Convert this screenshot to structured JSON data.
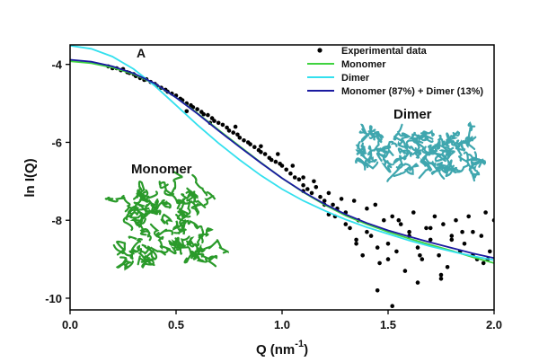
{
  "chart_data": {
    "type": "scatter",
    "panel_label": "A",
    "xlabel": "Q (nm",
    "xlabel_superscript": "-1",
    "xlabel_close": ")",
    "ylabel": "ln I(Q)",
    "xlim": [
      0.0,
      2.0
    ],
    "ylim": [
      -10.3,
      -3.5
    ],
    "x_ticks": [
      0.0,
      0.5,
      1.0,
      1.5,
      2.0
    ],
    "x_tick_labels": [
      "0.0",
      "0.5",
      "1.0",
      "1.5",
      "2.0"
    ],
    "y_ticks": [
      -4,
      -6,
      -8,
      -10
    ],
    "y_tick_labels": [
      "-4",
      "-6",
      "-8",
      "-10"
    ],
    "grid": false,
    "legend_position": "top-right",
    "annotations": {
      "monomer": "Monomer",
      "dimer": "Dimer"
    },
    "colors": {
      "experimental": "#000000",
      "monomer": "#3fd33f",
      "dimer": "#33e0ee",
      "mix": "#1a1aa0",
      "monomer_structure": "#2a9a2a",
      "dimer_structure": "#3fa6ae"
    },
    "series": [
      {
        "name": "Experimental data",
        "kind": "points",
        "x": [
          0.18,
          0.2,
          0.22,
          0.24,
          0.25,
          0.27,
          0.28,
          0.3,
          0.31,
          0.33,
          0.35,
          0.36,
          0.38,
          0.4,
          0.41,
          0.43,
          0.45,
          0.46,
          0.48,
          0.5,
          0.52,
          0.53,
          0.55,
          0.57,
          0.58,
          0.6,
          0.62,
          0.63,
          0.65,
          0.67,
          0.68,
          0.7,
          0.72,
          0.74,
          0.75,
          0.77,
          0.79,
          0.8,
          0.82,
          0.84,
          0.85,
          0.87,
          0.89,
          0.9,
          0.92,
          0.94,
          0.95,
          0.97,
          0.99,
          1.0,
          1.02,
          1.04,
          1.06,
          1.08,
          1.1,
          1.12,
          1.14,
          1.16,
          1.18,
          1.2,
          1.22,
          1.24,
          1.26,
          1.28,
          1.3,
          1.32,
          1.34,
          1.36,
          1.38,
          1.4,
          1.42,
          1.44,
          1.46,
          1.48,
          1.5,
          1.52,
          1.54,
          1.56,
          1.58,
          1.6,
          1.62,
          1.64,
          1.66,
          1.68,
          1.7,
          1.72,
          1.74,
          1.76,
          1.78,
          1.8,
          1.82,
          1.84,
          1.86,
          1.88,
          1.9,
          1.92,
          1.94,
          1.96,
          1.98,
          2.0,
          0.55,
          0.66,
          0.78,
          0.9,
          0.98,
          1.05,
          1.1,
          1.15,
          1.2,
          1.25,
          1.3,
          1.35,
          1.4,
          1.45,
          1.5,
          1.55,
          1.6,
          1.65,
          1.7,
          1.75,
          1.8,
          1.85,
          1.9,
          1.95,
          1.45,
          1.52,
          1.64,
          1.75,
          1.97,
          1.1,
          1.22,
          1.35
        ],
        "y": [
          -4.05,
          -4.1,
          -4.1,
          -4.15,
          -4.12,
          -4.2,
          -4.22,
          -4.25,
          -4.3,
          -4.35,
          -4.4,
          -4.38,
          -4.45,
          -4.5,
          -4.55,
          -4.6,
          -4.65,
          -4.7,
          -4.75,
          -4.8,
          -4.88,
          -4.92,
          -5.0,
          -5.05,
          -5.1,
          -5.15,
          -5.22,
          -5.28,
          -5.3,
          -5.38,
          -5.45,
          -5.5,
          -5.55,
          -5.62,
          -5.7,
          -5.75,
          -5.8,
          -5.88,
          -5.95,
          -6.0,
          -6.05,
          -6.12,
          -6.2,
          -6.25,
          -6.3,
          -6.4,
          -6.45,
          -6.5,
          -6.55,
          -6.6,
          -6.7,
          -6.8,
          -6.9,
          -6.95,
          -7.1,
          -7.2,
          -7.3,
          -7.15,
          -7.4,
          -7.5,
          -7.3,
          -7.6,
          -7.7,
          -7.45,
          -7.8,
          -8.2,
          -7.5,
          -8.0,
          -8.9,
          -7.7,
          -8.4,
          -7.6,
          -9.1,
          -8.0,
          -8.6,
          -7.9,
          -8.8,
          -8.1,
          -9.3,
          -8.3,
          -7.8,
          -8.7,
          -9.0,
          -8.2,
          -8.5,
          -7.9,
          -8.9,
          -8.1,
          -9.2,
          -8.4,
          -8.0,
          -8.8,
          -8.6,
          -7.9,
          -8.3,
          -9.0,
          -8.4,
          -7.8,
          -8.8,
          -8.0,
          -5.2,
          -5.5,
          -5.6,
          -6.1,
          -6.3,
          -6.6,
          -6.9,
          -7.0,
          -7.6,
          -7.9,
          -8.1,
          -8.6,
          -8.3,
          -8.7,
          -9.0,
          -8.0,
          -8.4,
          -8.9,
          -8.2,
          -9.4,
          -8.5,
          -8.3,
          -8.9,
          -9.1,
          -9.8,
          -10.2,
          -9.6,
          -9.5,
          -9.0,
          -7.25,
          -7.85,
          -8.5
        ]
      },
      {
        "name": "Monomer",
        "kind": "line",
        "x": [
          0.0,
          0.1,
          0.2,
          0.3,
          0.4,
          0.5,
          0.6,
          0.7,
          0.8,
          0.9,
          1.0,
          1.1,
          1.2,
          1.3,
          1.4,
          1.5,
          1.6,
          1.7,
          1.8,
          1.9,
          2.0
        ],
        "y": [
          -3.92,
          -3.97,
          -4.08,
          -4.25,
          -4.5,
          -4.85,
          -5.25,
          -5.68,
          -6.1,
          -6.52,
          -6.92,
          -7.28,
          -7.6,
          -7.88,
          -8.1,
          -8.3,
          -8.47,
          -8.63,
          -8.78,
          -8.95,
          -9.1
        ]
      },
      {
        "name": "Dimer",
        "kind": "line",
        "x": [
          0.0,
          0.1,
          0.2,
          0.3,
          0.4,
          0.5,
          0.6,
          0.7,
          0.8,
          0.9,
          1.0,
          1.1,
          1.2,
          1.3,
          1.4,
          1.5,
          1.6,
          1.7,
          1.8,
          1.9,
          2.0
        ],
        "y": [
          -3.52,
          -3.6,
          -3.8,
          -4.12,
          -4.55,
          -5.05,
          -5.55,
          -6.02,
          -6.45,
          -6.85,
          -7.2,
          -7.5,
          -7.75,
          -7.98,
          -8.18,
          -8.35,
          -8.52,
          -8.67,
          -8.8,
          -8.92,
          -9.02
        ]
      },
      {
        "name": "Monomer (87%) + Dimer (13%)",
        "kind": "line",
        "x": [
          0.0,
          0.1,
          0.2,
          0.3,
          0.4,
          0.5,
          0.6,
          0.7,
          0.8,
          0.9,
          1.0,
          1.1,
          1.2,
          1.3,
          1.4,
          1.5,
          1.6,
          1.7,
          1.8,
          1.9,
          2.0
        ],
        "y": [
          -3.88,
          -3.93,
          -4.05,
          -4.23,
          -4.49,
          -4.85,
          -5.26,
          -5.7,
          -6.12,
          -6.53,
          -6.92,
          -7.27,
          -7.58,
          -7.85,
          -8.07,
          -8.26,
          -8.42,
          -8.57,
          -8.71,
          -8.85,
          -8.97
        ]
      }
    ]
  }
}
